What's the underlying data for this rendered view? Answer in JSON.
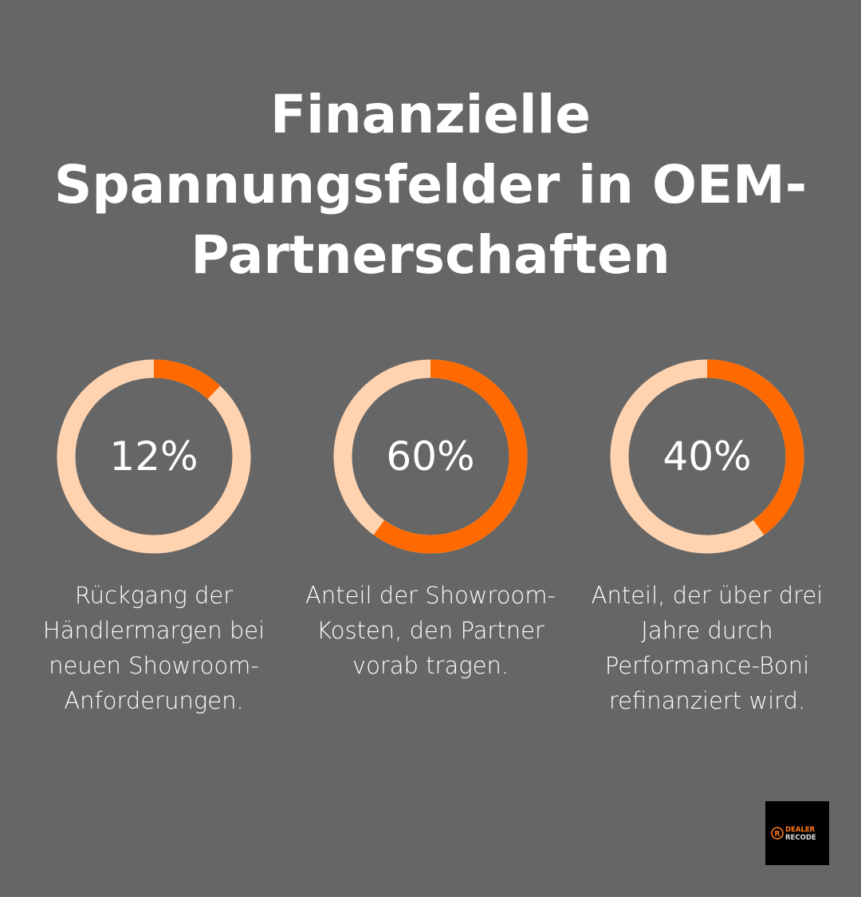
{
  "title": "Finanzielle Spannungsfelder in OEM-Partnerschaften",
  "colors": {
    "background": "#666666",
    "accent": "#FF6A00",
    "track": "#FFD3B0"
  },
  "chart_data": {
    "type": "pie",
    "variant": "donut-gauges",
    "items": [
      {
        "value": 12,
        "label": "12%",
        "description": "Rückgang der Händlermargen bei neuen Showroom-Anforderungen."
      },
      {
        "value": 60,
        "label": "60%",
        "description": "Anteil der Showroom-Kosten, den Partner vorab tragen."
      },
      {
        "value": 40,
        "label": "40%",
        "description": "Anteil, der über drei Jahre durch Performance-Boni refinanziert wird."
      }
    ]
  },
  "logo": {
    "line1": "DEALER",
    "line2": "RECODE"
  }
}
